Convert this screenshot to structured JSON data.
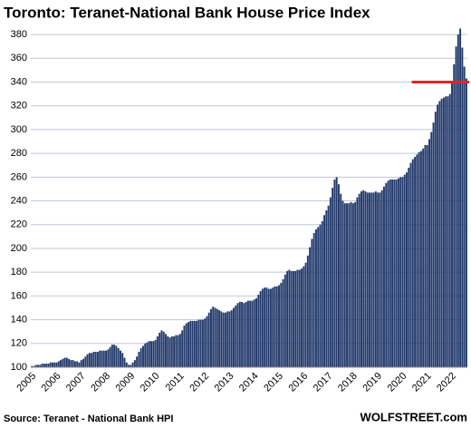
{
  "chart_data": {
    "type": "bar",
    "title": "Toronto: Teranet-National Bank House Price Index",
    "source": "Source: Teranet - National Bank HPI",
    "brand": "WOLFSTREET.com",
    "color": "#22396b",
    "grid": true,
    "hline": 340,
    "hline_color": "#e3222b",
    "ylim": [
      100,
      390
    ],
    "yticks": [
      100,
      120,
      140,
      160,
      180,
      200,
      220,
      240,
      260,
      280,
      300,
      320,
      340,
      360,
      380
    ],
    "categories": [
      "2005",
      null,
      null,
      null,
      null,
      null,
      null,
      null,
      null,
      null,
      null,
      null,
      "2006",
      null,
      null,
      null,
      null,
      null,
      null,
      null,
      null,
      null,
      null,
      null,
      "2007",
      null,
      null,
      null,
      null,
      null,
      null,
      null,
      null,
      null,
      null,
      null,
      "2008",
      null,
      null,
      null,
      null,
      null,
      null,
      null,
      null,
      null,
      null,
      null,
      "2009",
      null,
      null,
      null,
      null,
      null,
      null,
      null,
      null,
      null,
      null,
      null,
      "2010",
      null,
      null,
      null,
      null,
      null,
      null,
      null,
      null,
      null,
      null,
      null,
      "2011",
      null,
      null,
      null,
      null,
      null,
      null,
      null,
      null,
      null,
      null,
      null,
      "2012",
      null,
      null,
      null,
      null,
      null,
      null,
      null,
      null,
      null,
      null,
      null,
      "2013",
      null,
      null,
      null,
      null,
      null,
      null,
      null,
      null,
      null,
      null,
      null,
      "2014",
      null,
      null,
      null,
      null,
      null,
      null,
      null,
      null,
      null,
      null,
      null,
      "2015",
      null,
      null,
      null,
      null,
      null,
      null,
      null,
      null,
      null,
      null,
      null,
      "2016",
      null,
      null,
      null,
      null,
      null,
      null,
      null,
      null,
      null,
      null,
      null,
      "2017",
      null,
      null,
      null,
      null,
      null,
      null,
      null,
      null,
      null,
      null,
      null,
      "2018",
      null,
      null,
      null,
      null,
      null,
      null,
      null,
      null,
      null,
      null,
      null,
      "2019",
      null,
      null,
      null,
      null,
      null,
      null,
      null,
      null,
      null,
      null,
      null,
      "2020",
      null,
      null,
      null,
      null,
      null,
      null,
      null,
      null,
      null,
      null,
      null,
      "2021",
      null,
      null,
      null,
      null,
      null,
      null,
      null,
      null,
      null,
      null,
      null,
      "2022",
      null,
      null,
      null,
      null,
      null,
      null,
      null
    ],
    "values": [
      101,
      101,
      102,
      102,
      102,
      103,
      103,
      103,
      103,
      104,
      104,
      104,
      104,
      105,
      106,
      107,
      108,
      108,
      107,
      106,
      106,
      105,
      105,
      104,
      106,
      107,
      109,
      111,
      112,
      112,
      113,
      113,
      113,
      114,
      114,
      114,
      114,
      115,
      117,
      119,
      119,
      118,
      116,
      114,
      112,
      108,
      104,
      102,
      102,
      104,
      106,
      109,
      113,
      116,
      118,
      120,
      121,
      122,
      122,
      122,
      123,
      126,
      129,
      131,
      130,
      128,
      126,
      125,
      126,
      126,
      127,
      127,
      128,
      131,
      135,
      137,
      138,
      139,
      139,
      139,
      139,
      140,
      140,
      140,
      141,
      143,
      146,
      149,
      151,
      150,
      149,
      148,
      147,
      146,
      146,
      147,
      147,
      148,
      150,
      152,
      154,
      155,
      155,
      154,
      155,
      156,
      156,
      156,
      157,
      158,
      161,
      164,
      166,
      167,
      167,
      166,
      166,
      167,
      168,
      168,
      169,
      171,
      174,
      178,
      181,
      182,
      181,
      181,
      181,
      182,
      182,
      183,
      185,
      188,
      194,
      201,
      208,
      213,
      216,
      218,
      220,
      223,
      228,
      232,
      236,
      243,
      251,
      258,
      260,
      254,
      246,
      240,
      238,
      238,
      238,
      239,
      238,
      239,
      243,
      246,
      248,
      249,
      248,
      247,
      247,
      247,
      247,
      248,
      247,
      247,
      249,
      252,
      255,
      257,
      258,
      258,
      258,
      258,
      259,
      260,
      260,
      262,
      264,
      268,
      272,
      275,
      277,
      279,
      281,
      282,
      284,
      287,
      287,
      292,
      298,
      306,
      315,
      321,
      324,
      326,
      327,
      328,
      328,
      330,
      340,
      355,
      370,
      380,
      385,
      369,
      353,
      343
    ]
  }
}
